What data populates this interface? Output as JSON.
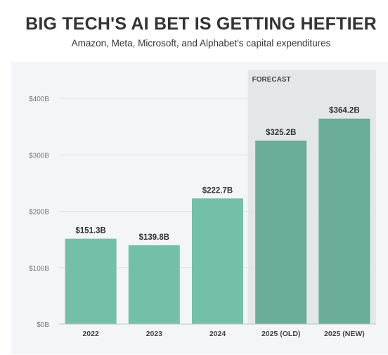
{
  "title": "BIG TECH'S AI BET IS GETTING HEFTIER",
  "subtitle": "Amazon, Meta, Microsoft, and Alphabet's capital expenditures",
  "colors": {
    "bar": "#74bfa9",
    "bar_forecast": "#6aac98",
    "forecast_band": "#e4e7e9",
    "panel": "#f3f5f8",
    "grid": "#dfe3e7"
  },
  "chart_data": {
    "type": "bar",
    "categories": [
      "2022",
      "2023",
      "2024",
      "2025 (OLD)",
      "2025 (NEW)"
    ],
    "values": [
      151.3,
      139.8,
      222.7,
      325.2,
      364.2
    ],
    "value_labels": [
      "$151.3B",
      "$139.8B",
      "$222.7B",
      "$325.2B",
      "$364.2B"
    ],
    "forecast_categories": [
      "2025 (OLD)",
      "2025 (NEW)"
    ],
    "forecast_label": "FORECAST",
    "ylim": [
      0,
      400
    ],
    "yticks": [
      0,
      100,
      200,
      300,
      400
    ],
    "ytick_labels": [
      "$0B",
      "$100B",
      "$200B",
      "$300B",
      "$400B"
    ],
    "grid": true,
    "title": "BIG TECH'S AI BET IS GETTING HEFTIER",
    "subtitle": "Amazon, Meta, Microsoft, and Alphabet's capital expenditures",
    "xlabel": "",
    "ylabel": ""
  }
}
